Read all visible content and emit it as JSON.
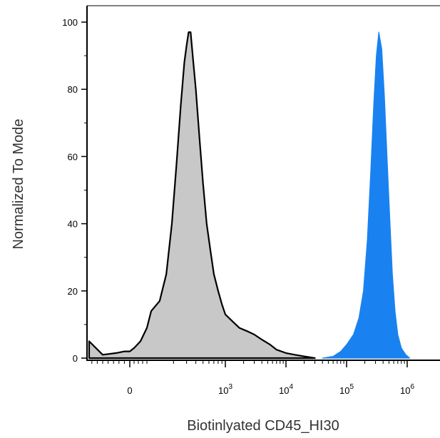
{
  "chart_data": {
    "type": "area",
    "title": "",
    "xlabel": "Biotinlyated CD45_HI30",
    "ylabel": "Normalized To Mode",
    "xscale": "biexponential",
    "x_ticks": [
      {
        "value": 0,
        "label": "0"
      },
      {
        "value": 1000,
        "label": "10",
        "exp": "3"
      },
      {
        "value": 10000,
        "label": "10",
        "exp": "4"
      },
      {
        "value": 100000,
        "label": "10",
        "exp": "5"
      },
      {
        "value": 1000000,
        "label": "10",
        "exp": "6"
      }
    ],
    "ylim": [
      0,
      100
    ],
    "y_ticks": [
      0,
      20,
      40,
      60,
      80,
      100
    ],
    "grid": false,
    "series": [
      {
        "color": "#c8c8c8",
        "stroke": "#000000",
        "points": [
          [
            -150,
            5
          ],
          [
            -100,
            1
          ],
          [
            -50,
            1.5
          ],
          [
            -20,
            2
          ],
          [
            0,
            2
          ],
          [
            20,
            3
          ],
          [
            50,
            5
          ],
          [
            80,
            9
          ],
          [
            100,
            14
          ],
          [
            130,
            17
          ],
          [
            160,
            25
          ],
          [
            190,
            40
          ],
          [
            220,
            58
          ],
          [
            250,
            75
          ],
          [
            280,
            88
          ],
          [
            300,
            93
          ],
          [
            320,
            97
          ],
          [
            340,
            97
          ],
          [
            370,
            88
          ],
          [
            400,
            80
          ],
          [
            450,
            65
          ],
          [
            500,
            52
          ],
          [
            560,
            40
          ],
          [
            630,
            32
          ],
          [
            700,
            25
          ],
          [
            800,
            20
          ],
          [
            900,
            16
          ],
          [
            1000,
            13
          ],
          [
            1300,
            11
          ],
          [
            1700,
            9
          ],
          [
            2300,
            8
          ],
          [
            3000,
            7
          ],
          [
            4000,
            5.5
          ],
          [
            5500,
            4
          ],
          [
            7000,
            2.5
          ],
          [
            10000,
            1.5
          ],
          [
            14000,
            1
          ],
          [
            20000,
            0.5
          ],
          [
            30000,
            0
          ]
        ]
      },
      {
        "color": "#1a82f0",
        "stroke": "#1a82f0",
        "points": [
          [
            40000,
            0
          ],
          [
            60000,
            0.5
          ],
          [
            80000,
            2
          ],
          [
            100000,
            4
          ],
          [
            130000,
            7
          ],
          [
            160000,
            12
          ],
          [
            190000,
            20
          ],
          [
            220000,
            35
          ],
          [
            250000,
            55
          ],
          [
            280000,
            75
          ],
          [
            310000,
            90
          ],
          [
            340000,
            97
          ],
          [
            380000,
            92
          ],
          [
            420000,
            78
          ],
          [
            470000,
            58
          ],
          [
            520000,
            40
          ],
          [
            570000,
            25
          ],
          [
            630000,
            14
          ],
          [
            700000,
            7
          ],
          [
            800000,
            3
          ],
          [
            950000,
            1
          ],
          [
            1100000,
            0
          ]
        ]
      }
    ]
  }
}
